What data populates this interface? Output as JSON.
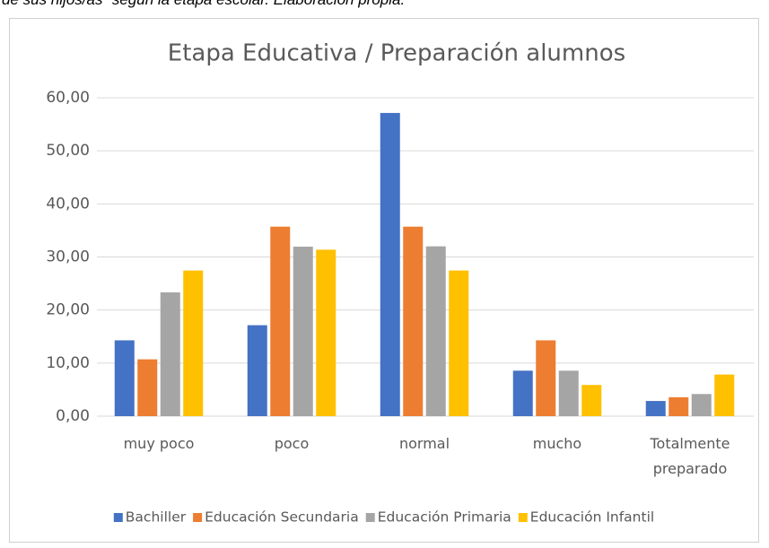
{
  "caption": "de sus hijos/as” según la etapa escolar. Elaboración propia.",
  "chart_data": {
    "type": "bar",
    "title": "Etapa Educativa / Preparación alumnos",
    "categories": [
      "muy poco",
      "poco",
      "normal",
      "mucho",
      "Totalmente preparado"
    ],
    "series": [
      {
        "name": "Bachiller",
        "color": "#4472c4",
        "values": [
          14.29,
          17.14,
          57.14,
          8.57,
          2.86
        ]
      },
      {
        "name": "Educación Secundaria",
        "color": "#ed7d31",
        "values": [
          10.71,
          35.71,
          35.71,
          14.29,
          3.57
        ]
      },
      {
        "name": "Educación Primaria",
        "color": "#a5a5a5",
        "values": [
          23.33,
          31.94,
          32.0,
          8.57,
          4.17
        ]
      },
      {
        "name": "Educación Infantil",
        "color": "#ffc000",
        "values": [
          27.45,
          31.37,
          27.45,
          5.88,
          7.84
        ]
      }
    ],
    "ylim": [
      0,
      60
    ],
    "yticks": [
      {
        "value": 0,
        "label": "0,00"
      },
      {
        "value": 10,
        "label": "10,00"
      },
      {
        "value": 20,
        "label": "20,00"
      },
      {
        "value": 30,
        "label": "30,00"
      },
      {
        "value": 40,
        "label": "40,00"
      },
      {
        "value": 50,
        "label": "50,00"
      },
      {
        "value": 60,
        "label": "60,00"
      }
    ],
    "grid": true,
    "legend": "bottom"
  }
}
